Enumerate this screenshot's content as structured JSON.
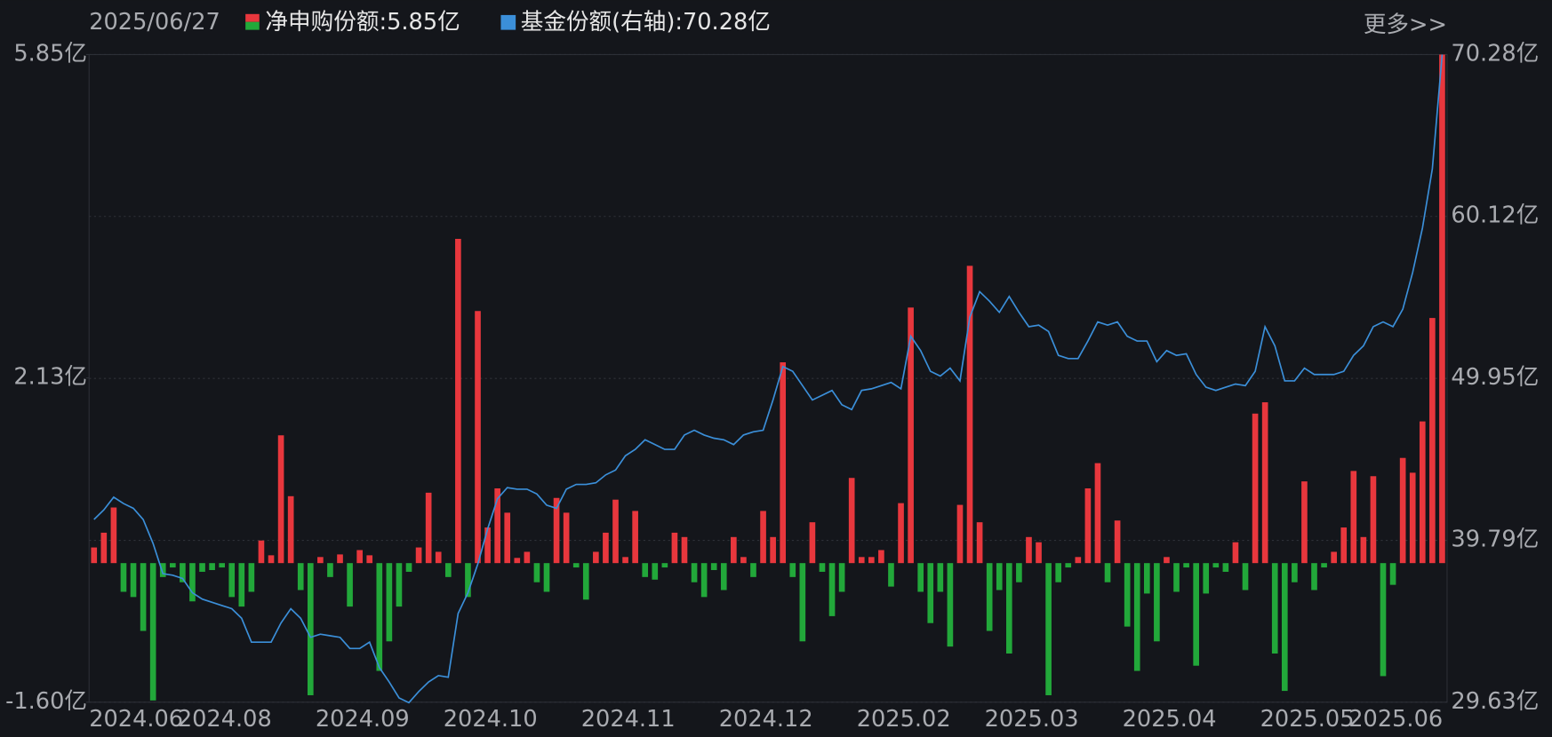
{
  "chart_data": {
    "type": "combo",
    "date": "2025/06/27",
    "legend": [
      "净申购份额:5.85亿",
      "基金份额(右轴):70.28亿"
    ],
    "more": "更多>>",
    "categories": [
      "2024.06",
      null,
      null,
      null,
      null,
      null,
      null,
      null,
      null,
      "2024.08",
      null,
      null,
      null,
      null,
      null,
      null,
      null,
      null,
      null,
      null,
      null,
      null,
      null,
      "2024.09",
      null,
      null,
      null,
      null,
      null,
      null,
      null,
      null,
      null,
      null,
      null,
      null,
      "2024.10",
      null,
      null,
      null,
      null,
      null,
      null,
      null,
      null,
      null,
      null,
      null,
      null,
      null,
      "2024.11",
      null,
      null,
      null,
      null,
      null,
      null,
      null,
      null,
      null,
      null,
      null,
      null,
      null,
      "2024.12",
      null,
      null,
      null,
      null,
      null,
      null,
      null,
      null,
      null,
      null,
      null,
      null,
      null,
      "2025.02",
      null,
      null,
      null,
      null,
      null,
      null,
      null,
      null,
      null,
      null,
      null,
      null,
      "2025.03",
      null,
      null,
      null,
      null,
      null,
      null,
      null,
      null,
      null,
      null,
      null,
      null,
      null,
      "2025.04",
      null,
      null,
      null,
      null,
      null,
      null,
      null,
      null,
      null,
      null,
      null,
      null,
      null,
      "2025.05",
      null,
      null,
      null,
      null,
      null,
      null,
      null,
      null,
      "2025.06",
      null,
      null,
      null,
      null,
      null,
      null,
      null,
      null,
      null
    ],
    "series": [
      {
        "type": "bar",
        "color": "#e8373d",
        "negative_color": "#22a83a",
        "values": [
          0.18,
          0.35,
          0.64,
          -0.33,
          -0.39,
          -0.78,
          -1.58,
          -0.16,
          -0.05,
          -0.22,
          -0.44,
          -0.1,
          -0.08,
          -0.05,
          -0.39,
          -0.5,
          -0.33,
          0.26,
          0.09,
          1.47,
          0.77,
          -0.31,
          -1.52,
          0.07,
          -0.16,
          0.1,
          -0.5,
          0.15,
          0.09,
          -1.24,
          -0.9,
          -0.5,
          -0.1,
          0.18,
          0.81,
          0.13,
          -0.16,
          3.73,
          -0.39,
          2.9,
          0.41,
          0.86,
          0.58,
          0.06,
          0.13,
          -0.22,
          -0.33,
          0.75,
          0.58,
          -0.05,
          -0.42,
          0.13,
          0.35,
          0.73,
          0.07,
          0.6,
          -0.16,
          -0.19,
          -0.05,
          0.35,
          0.3,
          -0.22,
          -0.39,
          -0.08,
          -0.31,
          0.3,
          0.07,
          -0.16,
          0.6,
          0.3,
          2.31,
          -0.16,
          -0.9,
          0.47,
          -0.1,
          -0.61,
          -0.33,
          0.98,
          0.07,
          0.07,
          0.15,
          -0.27,
          0.69,
          2.94,
          -0.33,
          -0.69,
          -0.33,
          -0.96,
          0.67,
          3.42,
          0.47,
          -0.78,
          -0.31,
          -1.04,
          -0.22,
          0.3,
          0.24,
          -1.52,
          -0.22,
          -0.05,
          0.07,
          0.86,
          1.15,
          -0.22,
          0.49,
          -0.73,
          -1.24,
          -0.35,
          -0.9,
          0.07,
          -0.33,
          -0.05,
          -1.18,
          -0.35,
          -0.05,
          -0.1,
          0.24,
          -0.31,
          1.72,
          1.85,
          -1.04,
          -1.47,
          -0.22,
          0.94,
          -0.31,
          -0.05,
          0.13,
          0.41,
          1.06,
          0.3,
          1.0,
          -1.3,
          -0.25,
          1.21,
          1.04,
          1.63,
          2.82,
          5.85
        ]
      },
      {
        "type": "line",
        "axis": "y2",
        "color": "#3b8fd9",
        "values": [
          41.1,
          41.7,
          42.5,
          42.1,
          41.8,
          41.1,
          39.6,
          37.7,
          37.6,
          37.4,
          36.5,
          36.1,
          35.9,
          35.7,
          35.5,
          34.9,
          33.4,
          33.4,
          33.4,
          34.6,
          35.5,
          34.9,
          33.7,
          33.9,
          33.8,
          33.7,
          33.0,
          33.0,
          33.4,
          31.8,
          30.9,
          29.9,
          29.6,
          30.3,
          30.9,
          31.3,
          31.2,
          35.2,
          36.5,
          38.3,
          40.5,
          42.4,
          43.1,
          43.0,
          43.0,
          42.7,
          42.0,
          41.8,
          43.0,
          43.3,
          43.3,
          43.4,
          43.9,
          44.2,
          45.1,
          45.5,
          46.1,
          45.8,
          45.5,
          45.5,
          46.4,
          46.7,
          46.4,
          46.2,
          46.1,
          45.8,
          46.4,
          46.6,
          46.7,
          48.6,
          50.7,
          50.4,
          49.5,
          48.6,
          48.9,
          49.2,
          48.3,
          48.0,
          49.2,
          49.3,
          49.5,
          49.7,
          49.3,
          52.6,
          51.7,
          50.4,
          50.1,
          50.6,
          49.8,
          53.8,
          55.4,
          54.8,
          54.1,
          55.1,
          54.1,
          53.2,
          53.3,
          52.9,
          51.4,
          51.2,
          51.2,
          52.3,
          53.5,
          53.3,
          53.5,
          52.6,
          52.3,
          52.3,
          51.0,
          51.7,
          51.4,
          51.5,
          50.2,
          49.4,
          49.2,
          49.4,
          49.6,
          49.5,
          50.4,
          53.2,
          52.0,
          49.8,
          49.8,
          50.6,
          50.2,
          50.2,
          50.2,
          50.4,
          51.4,
          52.0,
          53.2,
          53.5,
          53.2,
          54.3,
          56.6,
          59.4,
          63.1,
          70.28
        ]
      }
    ],
    "ylim": [
      -1.6,
      5.85
    ],
    "yticks": [
      {
        "value": -1.6,
        "label": "-1.60亿"
      },
      {
        "value": 2.13,
        "label": "2.13亿"
      },
      {
        "value": 5.85,
        "label": "5.85亿"
      }
    ],
    "y2lim": [
      29.63,
      70.28
    ],
    "y2ticks": [
      {
        "value": 29.63,
        "label": "29.63亿"
      },
      {
        "value": 39.79,
        "label": "39.79亿"
      },
      {
        "value": 49.95,
        "label": "49.95亿"
      },
      {
        "value": 60.12,
        "label": "60.12亿"
      },
      {
        "value": 70.28,
        "label": "70.28亿"
      }
    ],
    "grid": true
  }
}
